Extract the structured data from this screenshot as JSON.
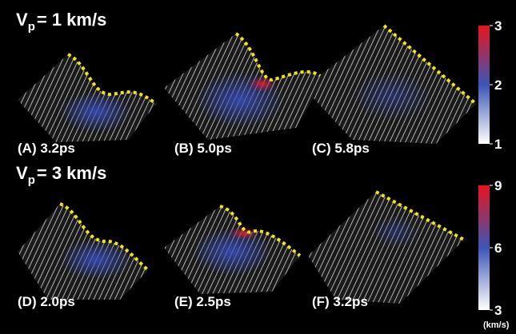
{
  "rows": [
    {
      "heading": {
        "symbol": "V",
        "subscript": "p",
        "text": "= 1 km/s"
      },
      "panels": [
        {
          "label": "(A) 3.2ps"
        },
        {
          "label": "(B) 5.0ps"
        },
        {
          "label": "(C) 5.8ps"
        }
      ],
      "colorbar": {
        "range": [
          1,
          3
        ],
        "ticks": [
          3,
          2,
          1
        ]
      }
    },
    {
      "heading": {
        "symbol": "V",
        "subscript": "p",
        "text": "= 3 km/s"
      },
      "panels": [
        {
          "label": "(D) 2.0ps"
        },
        {
          "label": "(E) 2.5ps"
        },
        {
          "label": "(F) 3.2ps"
        }
      ],
      "colorbar": {
        "range": [
          3,
          9
        ],
        "ticks": [
          9,
          6,
          3
        ],
        "unit": "(km/s)"
      }
    }
  ]
}
